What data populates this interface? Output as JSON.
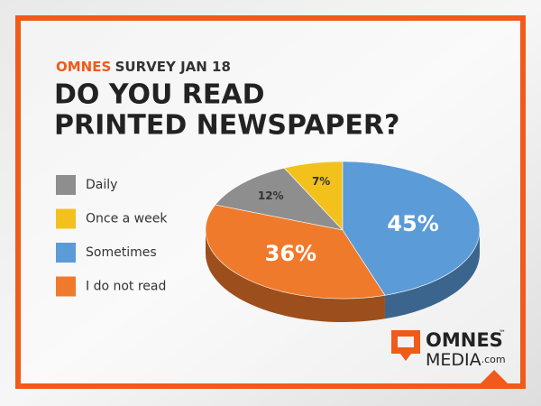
{
  "chart_data": {
    "type": "pie",
    "subtitle": [
      "OMNES",
      "SURVEY JAN 18"
    ],
    "title": [
      "DO YOU READ",
      "PRINTED NEWSPAPER?"
    ],
    "categories": [
      "Daily",
      "Once a week",
      "Sometimes",
      "I do not read"
    ],
    "values": [
      12,
      7,
      45,
      36
    ],
    "value_labels": [
      "12%",
      "7%",
      "45%",
      "36%"
    ],
    "colors": [
      "#8e8e8e",
      "#f2c11c",
      "#5b9bd8",
      "#f07a2b"
    ],
    "legend": "left"
  },
  "logo": {
    "name": "OMNES",
    "trademark": "™",
    "sub": "MEDIA",
    "domain": ".com"
  }
}
